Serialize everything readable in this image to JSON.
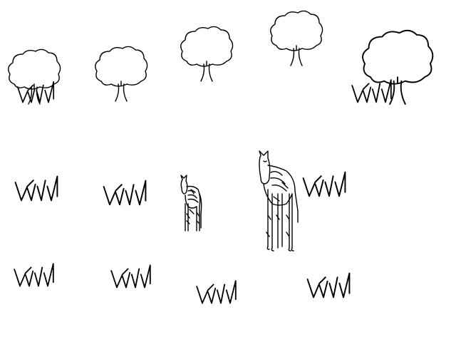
{
  "scene": {
    "background": "#ffffff",
    "stroke": "#000000",
    "trees": [
      "tree",
      "tree",
      "tree",
      "tree",
      "tree"
    ],
    "grass_tufts": [
      "grass-tuft",
      "grass-tuft",
      "grass-tuft",
      "grass-tuft",
      "grass-tuft",
      "grass-tuft",
      "grass-tuft",
      "grass-tuft",
      "grass-tuft",
      "grass-tuft"
    ],
    "animals": [
      "zebra",
      "horse"
    ]
  }
}
